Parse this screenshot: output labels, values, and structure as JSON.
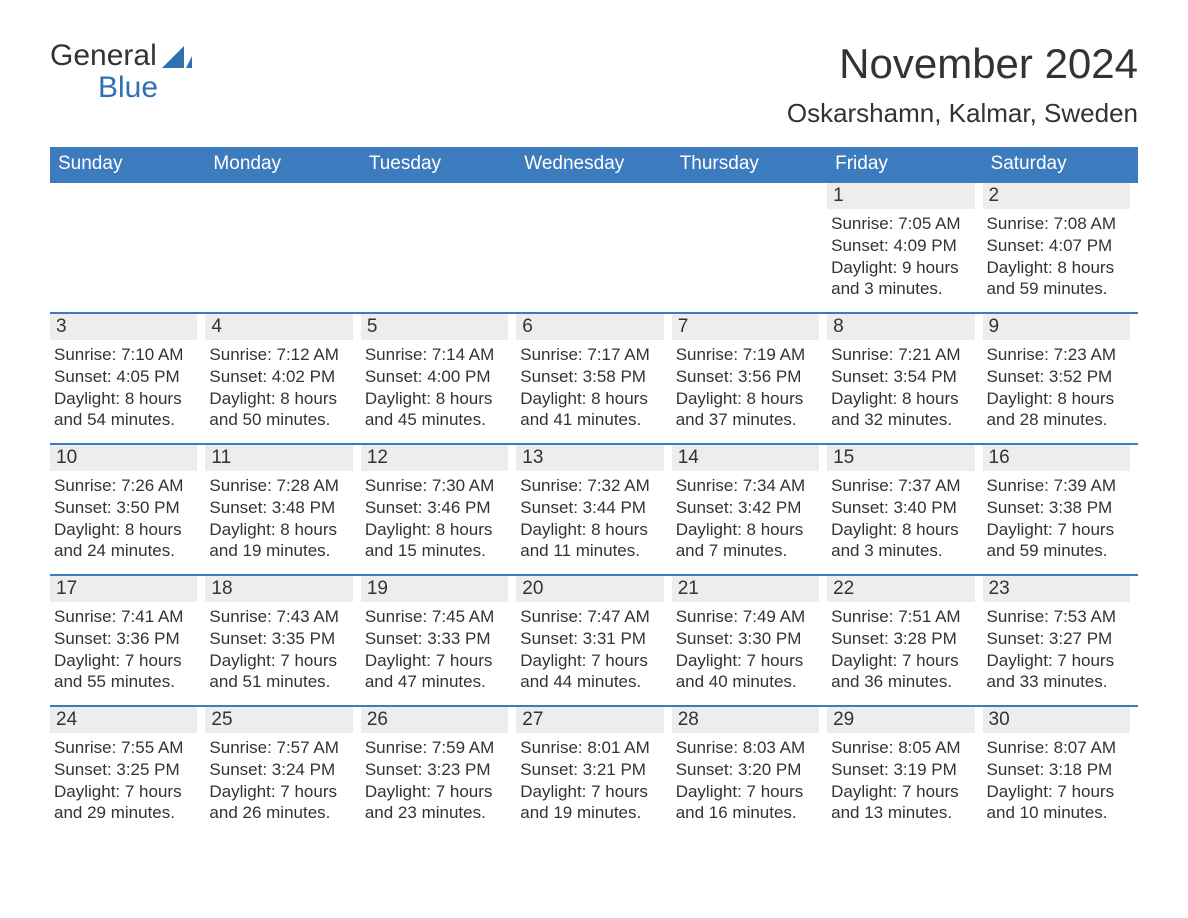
{
  "logo": {
    "line1": "General",
    "line2": "Blue",
    "sail_color": "#2f6fb3",
    "general_color": "#333333",
    "blue_color": "#2f6fb3"
  },
  "title": "November 2024",
  "location": "Oskarshamn, Kalmar, Sweden",
  "colors": {
    "header_bg": "#3d7bbf",
    "header_text": "#ffffff",
    "daynum_bg": "#ededed",
    "text": "#333333",
    "rule": "#3d7bbf",
    "page_bg": "#ffffff"
  },
  "fonts": {
    "title_size": 42,
    "location_size": 26,
    "dow_size": 19,
    "daynum_size": 19,
    "body_size": 17
  },
  "days_of_week": [
    "Sunday",
    "Monday",
    "Tuesday",
    "Wednesday",
    "Thursday",
    "Friday",
    "Saturday"
  ],
  "weeks": [
    [
      {
        "n": "",
        "sunrise": "",
        "sunset": "",
        "daylight": ""
      },
      {
        "n": "",
        "sunrise": "",
        "sunset": "",
        "daylight": ""
      },
      {
        "n": "",
        "sunrise": "",
        "sunset": "",
        "daylight": ""
      },
      {
        "n": "",
        "sunrise": "",
        "sunset": "",
        "daylight": ""
      },
      {
        "n": "",
        "sunrise": "",
        "sunset": "",
        "daylight": ""
      },
      {
        "n": "1",
        "sunrise": "Sunrise: 7:05 AM",
        "sunset": "Sunset: 4:09 PM",
        "daylight": "Daylight: 9 hours and 3 minutes."
      },
      {
        "n": "2",
        "sunrise": "Sunrise: 7:08 AM",
        "sunset": "Sunset: 4:07 PM",
        "daylight": "Daylight: 8 hours and 59 minutes."
      }
    ],
    [
      {
        "n": "3",
        "sunrise": "Sunrise: 7:10 AM",
        "sunset": "Sunset: 4:05 PM",
        "daylight": "Daylight: 8 hours and 54 minutes."
      },
      {
        "n": "4",
        "sunrise": "Sunrise: 7:12 AM",
        "sunset": "Sunset: 4:02 PM",
        "daylight": "Daylight: 8 hours and 50 minutes."
      },
      {
        "n": "5",
        "sunrise": "Sunrise: 7:14 AM",
        "sunset": "Sunset: 4:00 PM",
        "daylight": "Daylight: 8 hours and 45 minutes."
      },
      {
        "n": "6",
        "sunrise": "Sunrise: 7:17 AM",
        "sunset": "Sunset: 3:58 PM",
        "daylight": "Daylight: 8 hours and 41 minutes."
      },
      {
        "n": "7",
        "sunrise": "Sunrise: 7:19 AM",
        "sunset": "Sunset: 3:56 PM",
        "daylight": "Daylight: 8 hours and 37 minutes."
      },
      {
        "n": "8",
        "sunrise": "Sunrise: 7:21 AM",
        "sunset": "Sunset: 3:54 PM",
        "daylight": "Daylight: 8 hours and 32 minutes."
      },
      {
        "n": "9",
        "sunrise": "Sunrise: 7:23 AM",
        "sunset": "Sunset: 3:52 PM",
        "daylight": "Daylight: 8 hours and 28 minutes."
      }
    ],
    [
      {
        "n": "10",
        "sunrise": "Sunrise: 7:26 AM",
        "sunset": "Sunset: 3:50 PM",
        "daylight": "Daylight: 8 hours and 24 minutes."
      },
      {
        "n": "11",
        "sunrise": "Sunrise: 7:28 AM",
        "sunset": "Sunset: 3:48 PM",
        "daylight": "Daylight: 8 hours and 19 minutes."
      },
      {
        "n": "12",
        "sunrise": "Sunrise: 7:30 AM",
        "sunset": "Sunset: 3:46 PM",
        "daylight": "Daylight: 8 hours and 15 minutes."
      },
      {
        "n": "13",
        "sunrise": "Sunrise: 7:32 AM",
        "sunset": "Sunset: 3:44 PM",
        "daylight": "Daylight: 8 hours and 11 minutes."
      },
      {
        "n": "14",
        "sunrise": "Sunrise: 7:34 AM",
        "sunset": "Sunset: 3:42 PM",
        "daylight": "Daylight: 8 hours and 7 minutes."
      },
      {
        "n": "15",
        "sunrise": "Sunrise: 7:37 AM",
        "sunset": "Sunset: 3:40 PM",
        "daylight": "Daylight: 8 hours and 3 minutes."
      },
      {
        "n": "16",
        "sunrise": "Sunrise: 7:39 AM",
        "sunset": "Sunset: 3:38 PM",
        "daylight": "Daylight: 7 hours and 59 minutes."
      }
    ],
    [
      {
        "n": "17",
        "sunrise": "Sunrise: 7:41 AM",
        "sunset": "Sunset: 3:36 PM",
        "daylight": "Daylight: 7 hours and 55 minutes."
      },
      {
        "n": "18",
        "sunrise": "Sunrise: 7:43 AM",
        "sunset": "Sunset: 3:35 PM",
        "daylight": "Daylight: 7 hours and 51 minutes."
      },
      {
        "n": "19",
        "sunrise": "Sunrise: 7:45 AM",
        "sunset": "Sunset: 3:33 PM",
        "daylight": "Daylight: 7 hours and 47 minutes."
      },
      {
        "n": "20",
        "sunrise": "Sunrise: 7:47 AM",
        "sunset": "Sunset: 3:31 PM",
        "daylight": "Daylight: 7 hours and 44 minutes."
      },
      {
        "n": "21",
        "sunrise": "Sunrise: 7:49 AM",
        "sunset": "Sunset: 3:30 PM",
        "daylight": "Daylight: 7 hours and 40 minutes."
      },
      {
        "n": "22",
        "sunrise": "Sunrise: 7:51 AM",
        "sunset": "Sunset: 3:28 PM",
        "daylight": "Daylight: 7 hours and 36 minutes."
      },
      {
        "n": "23",
        "sunrise": "Sunrise: 7:53 AM",
        "sunset": "Sunset: 3:27 PM",
        "daylight": "Daylight: 7 hours and 33 minutes."
      }
    ],
    [
      {
        "n": "24",
        "sunrise": "Sunrise: 7:55 AM",
        "sunset": "Sunset: 3:25 PM",
        "daylight": "Daylight: 7 hours and 29 minutes."
      },
      {
        "n": "25",
        "sunrise": "Sunrise: 7:57 AM",
        "sunset": "Sunset: 3:24 PM",
        "daylight": "Daylight: 7 hours and 26 minutes."
      },
      {
        "n": "26",
        "sunrise": "Sunrise: 7:59 AM",
        "sunset": "Sunset: 3:23 PM",
        "daylight": "Daylight: 7 hours and 23 minutes."
      },
      {
        "n": "27",
        "sunrise": "Sunrise: 8:01 AM",
        "sunset": "Sunset: 3:21 PM",
        "daylight": "Daylight: 7 hours and 19 minutes."
      },
      {
        "n": "28",
        "sunrise": "Sunrise: 8:03 AM",
        "sunset": "Sunset: 3:20 PM",
        "daylight": "Daylight: 7 hours and 16 minutes."
      },
      {
        "n": "29",
        "sunrise": "Sunrise: 8:05 AM",
        "sunset": "Sunset: 3:19 PM",
        "daylight": "Daylight: 7 hours and 13 minutes."
      },
      {
        "n": "30",
        "sunrise": "Sunrise: 8:07 AM",
        "sunset": "Sunset: 3:18 PM",
        "daylight": "Daylight: 7 hours and 10 minutes."
      }
    ]
  ]
}
